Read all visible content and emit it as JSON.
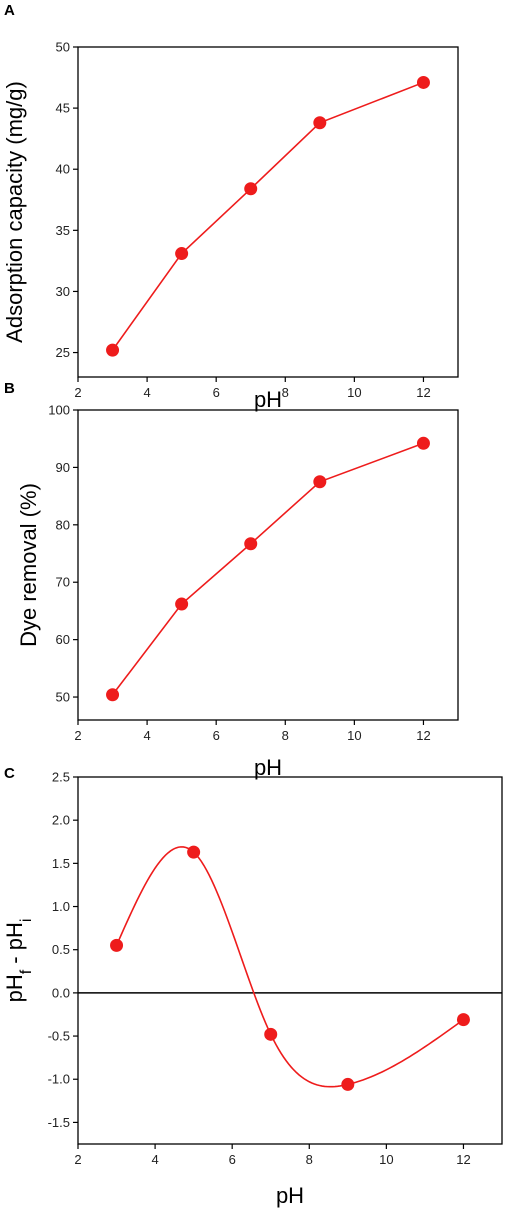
{
  "colors": {
    "series": "#ee1c1c",
    "axis": "#000000",
    "background": "#ffffff"
  },
  "chart_data": [
    {
      "panel": "A",
      "type": "line",
      "curve": "straight",
      "xlabel": "pH",
      "ylabel": "Adsorption capacity (mg/g)",
      "xlim": [
        2,
        13
      ],
      "ylim": [
        23,
        50
      ],
      "xticks": [
        2,
        4,
        6,
        8,
        10,
        12
      ],
      "yticks": [
        25,
        30,
        35,
        40,
        45,
        50
      ],
      "series": [
        {
          "x": [
            3,
            5,
            7,
            9,
            12
          ],
          "y": [
            25.2,
            33.1,
            38.4,
            43.8,
            47.1
          ]
        }
      ]
    },
    {
      "panel": "B",
      "type": "line",
      "curve": "straight",
      "xlabel": "pH",
      "ylabel": "Dye removal  (%)",
      "xlim": [
        2,
        13
      ],
      "ylim": [
        46,
        100
      ],
      "xticks": [
        2,
        4,
        6,
        8,
        10,
        12
      ],
      "yticks": [
        50,
        60,
        70,
        80,
        90,
        100
      ],
      "series": [
        {
          "x": [
            3,
            5,
            7,
            9,
            12
          ],
          "y": [
            50.4,
            66.2,
            76.7,
            87.5,
            94.2
          ]
        }
      ]
    },
    {
      "panel": "C",
      "type": "line",
      "curve": "smooth",
      "xlabel": "pH",
      "ylabel": "pHf - pHi",
      "xlim": [
        2,
        13
      ],
      "ylim": [
        -1.75,
        2.5
      ],
      "xticks": [
        2,
        4,
        6,
        8,
        10,
        12
      ],
      "yticks": [
        -1.5,
        -1.0,
        -0.5,
        0.0,
        0.5,
        1.0,
        1.5,
        2.0,
        2.5
      ],
      "yticklabels": [
        "-1.5",
        "-1.0",
        "-0.5",
        "0.0",
        "0.5",
        "1.0",
        "1.5",
        "2.0",
        "2.5"
      ],
      "zero_line": true,
      "series": [
        {
          "x": [
            3,
            5,
            7,
            9,
            12
          ],
          "y": [
            0.55,
            1.63,
            -0.48,
            -1.06,
            -0.31
          ]
        }
      ]
    }
  ]
}
